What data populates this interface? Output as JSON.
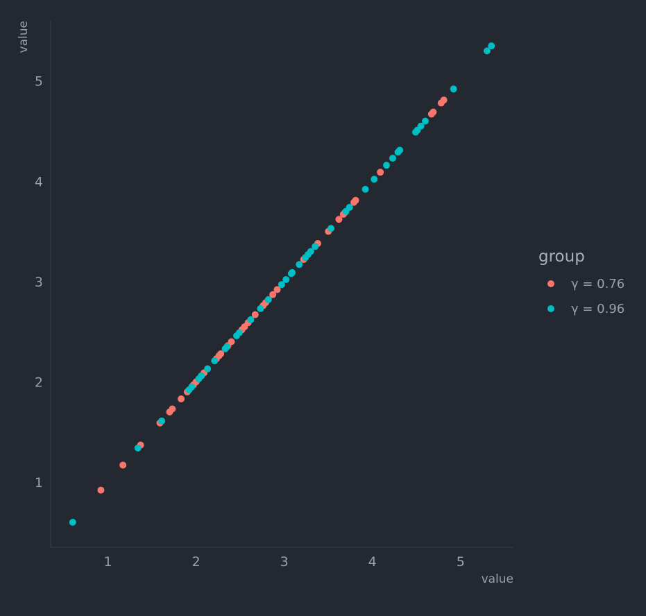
{
  "chart_data": {
    "type": "scatter",
    "title": "",
    "xlabel": "value",
    "ylabel": "value",
    "xlim": [
      0.35,
      5.6
    ],
    "ylim": [
      0.35,
      5.6
    ],
    "x_ticks": [
      1,
      2,
      3,
      4,
      5
    ],
    "y_ticks": [
      1,
      2,
      3,
      4,
      5
    ],
    "grid": false,
    "legend": {
      "title": "group",
      "position": "right"
    },
    "series": [
      {
        "name": "γ = 0.76",
        "color": "#f8766d",
        "points": [
          [
            0.92,
            0.92
          ],
          [
            1.17,
            1.17
          ],
          [
            1.37,
            1.37
          ],
          [
            1.59,
            1.59
          ],
          [
            1.7,
            1.7
          ],
          [
            1.73,
            1.73
          ],
          [
            1.83,
            1.83
          ],
          [
            1.9,
            1.9
          ],
          [
            1.97,
            1.97
          ],
          [
            2.0,
            2.0
          ],
          [
            2.06,
            2.06
          ],
          [
            2.09,
            2.09
          ],
          [
            2.23,
            2.23
          ],
          [
            2.26,
            2.26
          ],
          [
            2.28,
            2.28
          ],
          [
            2.36,
            2.36
          ],
          [
            2.4,
            2.4
          ],
          [
            2.52,
            2.52
          ],
          [
            2.55,
            2.55
          ],
          [
            2.59,
            2.59
          ],
          [
            2.67,
            2.67
          ],
          [
            2.76,
            2.76
          ],
          [
            2.79,
            2.79
          ],
          [
            2.87,
            2.87
          ],
          [
            2.92,
            2.92
          ],
          [
            3.22,
            3.22
          ],
          [
            3.38,
            3.38
          ],
          [
            3.5,
            3.5
          ],
          [
            3.62,
            3.62
          ],
          [
            3.67,
            3.67
          ],
          [
            3.69,
            3.69
          ],
          [
            3.79,
            3.79
          ],
          [
            3.81,
            3.81
          ],
          [
            4.09,
            4.09
          ],
          [
            4.67,
            4.67
          ],
          [
            4.69,
            4.69
          ],
          [
            4.78,
            4.78
          ],
          [
            4.81,
            4.81
          ]
        ]
      },
      {
        "name": "γ = 0.96",
        "color": "#00bfc4",
        "points": [
          [
            0.6,
            0.6
          ],
          [
            1.34,
            1.34
          ],
          [
            1.61,
            1.61
          ],
          [
            1.92,
            1.92
          ],
          [
            1.95,
            1.95
          ],
          [
            2.03,
            2.03
          ],
          [
            2.06,
            2.06
          ],
          [
            2.13,
            2.13
          ],
          [
            2.21,
            2.21
          ],
          [
            2.33,
            2.33
          ],
          [
            2.35,
            2.35
          ],
          [
            2.46,
            2.46
          ],
          [
            2.49,
            2.49
          ],
          [
            2.62,
            2.62
          ],
          [
            2.73,
            2.73
          ],
          [
            2.82,
            2.82
          ],
          [
            2.97,
            2.97
          ],
          [
            3.02,
            3.02
          ],
          [
            3.08,
            3.08
          ],
          [
            3.09,
            3.09
          ],
          [
            3.17,
            3.17
          ],
          [
            3.24,
            3.24
          ],
          [
            3.27,
            3.27
          ],
          [
            3.3,
            3.3
          ],
          [
            3.35,
            3.35
          ],
          [
            3.53,
            3.53
          ],
          [
            3.7,
            3.7
          ],
          [
            3.74,
            3.74
          ],
          [
            3.92,
            3.92
          ],
          [
            4.02,
            4.02
          ],
          [
            4.16,
            4.16
          ],
          [
            4.23,
            4.23
          ],
          [
            4.29,
            4.29
          ],
          [
            4.31,
            4.31
          ],
          [
            4.49,
            4.49
          ],
          [
            4.51,
            4.51
          ],
          [
            4.55,
            4.55
          ],
          [
            4.6,
            4.6
          ],
          [
            4.92,
            4.92
          ],
          [
            5.3,
            5.3
          ],
          [
            5.35,
            5.35
          ]
        ]
      }
    ]
  }
}
